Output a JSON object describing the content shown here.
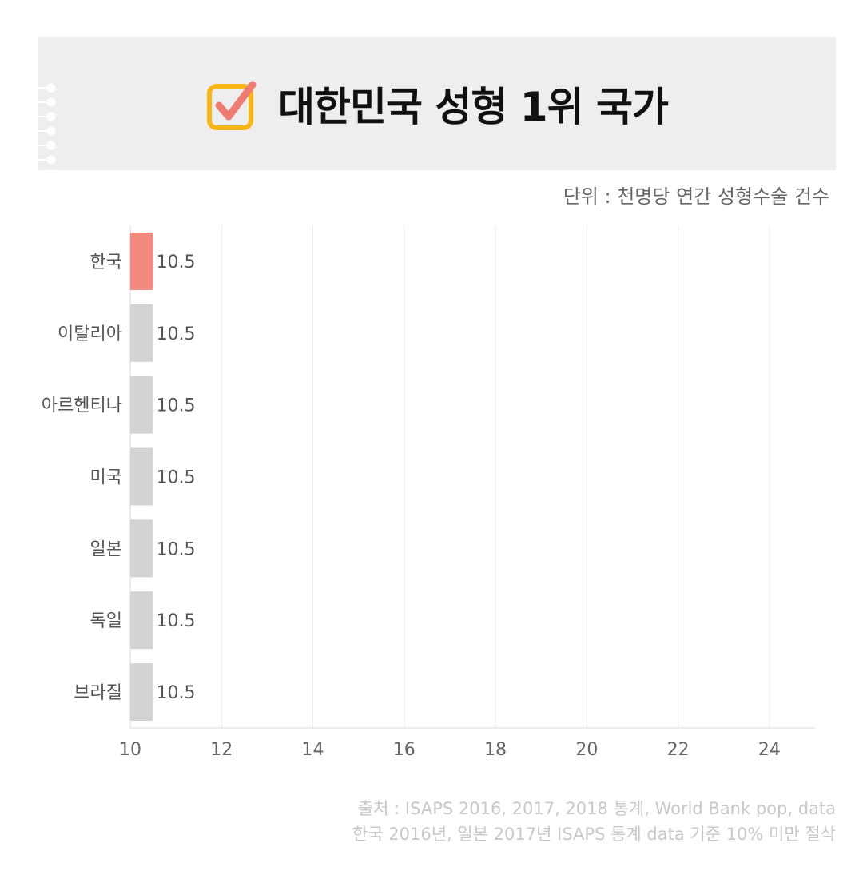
{
  "title": "대한민국 성형 1위 국가",
  "unit": "단위 : 천명당 연간 성형수술 건수",
  "colors": {
    "highlight": "#f28a80",
    "bar": "#d3d3d3",
    "check_box": "#f8b616",
    "check_mark": "#ee7b72",
    "panel": "#eeeeee"
  },
  "icons": {
    "title_icon": "checkbox-checked-icon"
  },
  "chart_data": {
    "type": "bar",
    "orientation": "horizontal",
    "categories": [
      "한국",
      "이탈리아",
      "아르헨티나",
      "미국",
      "일본",
      "독일",
      "브라질"
    ],
    "values": [
      10.5,
      10.5,
      10.5,
      10.5,
      10.5,
      10.5,
      10.5
    ],
    "value_labels": [
      "10.5",
      "10.5",
      "10.5",
      "10.5",
      "10.5",
      "10.5",
      "10.5"
    ],
    "highlight_index": 0,
    "xlim": [
      10,
      25
    ],
    "xticks": [
      10,
      12,
      14,
      16,
      18,
      20,
      22,
      24
    ],
    "grid": "vertical",
    "xlabel": "",
    "ylabel": ""
  },
  "source_lines": [
    "출처 : ISAPS 2016, 2017, 2018 통계, World Bank pop, data",
    "한국 2016년, 일본 2017년 ISAPS 통계 data 기준 10% 미만 절삭"
  ]
}
